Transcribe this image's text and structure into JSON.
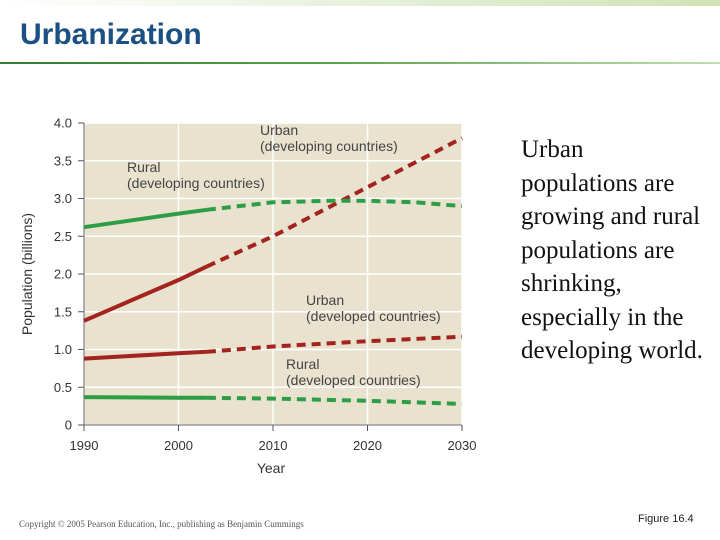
{
  "slide": {
    "title": "Urbanization",
    "body_text": "Urban populations are growing and rural populations are shrinking, especially in the developing world.",
    "copyright": "Copyright © 2005 Pearson Education, Inc., publishing as Benjamin Cummings",
    "figure_label": "Figure 16.4"
  },
  "colors": {
    "title": "#1c4f82",
    "urban": "#a3241e",
    "rural": "#2e9e46",
    "plot_background": "#e9e2cf",
    "grid": "#ffffff"
  },
  "chart_data": {
    "type": "line",
    "xlabel": "Year",
    "ylabel": "Population (billions)",
    "xlim": [
      1990,
      2030
    ],
    "ylim": [
      0,
      4.0
    ],
    "xticks": [
      "1990",
      "2000",
      "2010",
      "2020",
      "2030"
    ],
    "yticks": [
      "0",
      "0.5",
      "1.0",
      "1.5",
      "2.0",
      "2.5",
      "3.0",
      "3.5",
      "4.0"
    ],
    "grid": true,
    "note": "solid = observed, dashed = projected",
    "series": [
      {
        "name": "Urban (developing countries)",
        "label_lines": [
          "Urban",
          "(developing countries)"
        ],
        "color_key": "urban",
        "observed": [
          [
            1990,
            1.38
          ],
          [
            2000,
            1.92
          ],
          [
            2003,
            2.1
          ]
        ],
        "projected": [
          [
            2003,
            2.1
          ],
          [
            2010,
            2.5
          ],
          [
            2020,
            3.15
          ],
          [
            2030,
            3.8
          ]
        ]
      },
      {
        "name": "Rural (developing countries)",
        "label_lines": [
          "Rural",
          "(developing countries)"
        ],
        "color_key": "rural",
        "observed": [
          [
            1990,
            2.62
          ],
          [
            2000,
            2.8
          ],
          [
            2003,
            2.85
          ]
        ],
        "projected": [
          [
            2003,
            2.85
          ],
          [
            2010,
            2.95
          ],
          [
            2016,
            2.97
          ],
          [
            2020,
            2.97
          ],
          [
            2025,
            2.95
          ],
          [
            2030,
            2.9
          ]
        ]
      },
      {
        "name": "Urban (developed countries)",
        "label_lines": [
          "Urban",
          "(developed countries)"
        ],
        "color_key": "urban",
        "observed": [
          [
            1990,
            0.88
          ],
          [
            2000,
            0.95
          ],
          [
            2003,
            0.97
          ]
        ],
        "projected": [
          [
            2003,
            0.97
          ],
          [
            2010,
            1.04
          ],
          [
            2020,
            1.11
          ],
          [
            2030,
            1.17
          ]
        ]
      },
      {
        "name": "Rural (developed countries)",
        "label_lines": [
          "Rural",
          "(developed countries)"
        ],
        "color_key": "rural",
        "observed": [
          [
            1990,
            0.37
          ],
          [
            2000,
            0.36
          ],
          [
            2003,
            0.36
          ]
        ],
        "projected": [
          [
            2003,
            0.36
          ],
          [
            2010,
            0.35
          ],
          [
            2020,
            0.32
          ],
          [
            2030,
            0.28
          ]
        ]
      }
    ]
  }
}
